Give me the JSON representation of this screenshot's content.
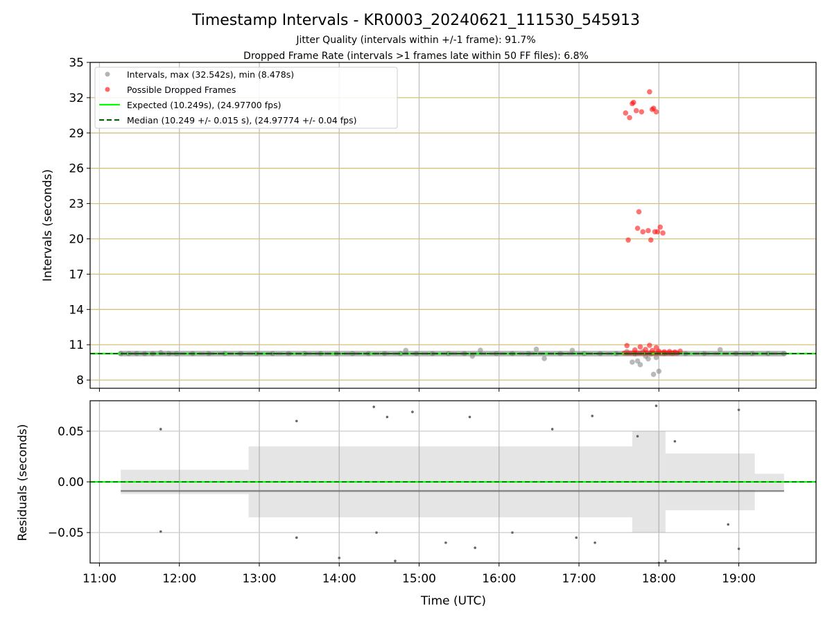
{
  "chart_data": [
    {
      "type": "scatter",
      "title": "Timestamp Intervals - KR0003_20240621_111530_545913",
      "subtitle_lines": [
        "Jitter Quality (intervals within +/-1 frame): 91.7%",
        "Dropped Frame Rate (intervals >1 frames late within 50 FF files): 6.8%"
      ],
      "xlabel": "",
      "ylabel": "Intervals (seconds)",
      "xlim": [
        "10:53",
        "19:58"
      ],
      "ylim": [
        7.3,
        35
      ],
      "yticks": [
        8,
        11,
        14,
        17,
        20,
        23,
        26,
        29,
        32,
        35
      ],
      "grid": true,
      "legend_position": "top-left",
      "legend": [
        "Intervals, max (32.542s), min (8.478s)",
        "Possible Dropped Frames",
        "Expected (10.249s), (24.97700 fps)",
        "Median (10.249 +/- 0.015 s), (24.97774 +/- 0.04 fps)"
      ],
      "expected_interval": 10.249,
      "median_interval": 10.249,
      "series": [
        {
          "name": "Intervals, max (32.542s), min (8.478s)",
          "color": "#808080",
          "x": [
            "11:16",
            "11:22",
            "11:28",
            "11:34",
            "11:40",
            "11:46",
            "11:52",
            "11:58",
            "12:10",
            "12:22",
            "12:34",
            "12:46",
            "12:58",
            "13:10",
            "13:22",
            "13:34",
            "13:46",
            "13:58",
            "14:10",
            "14:22",
            "14:34",
            "14:46",
            "14:50",
            "14:58",
            "15:10",
            "15:22",
            "15:34",
            "15:40",
            "15:46",
            "15:58",
            "16:10",
            "16:22",
            "16:28",
            "16:34",
            "16:46",
            "16:55",
            "17:04",
            "17:16",
            "17:28",
            "17:36",
            "17:40",
            "17:42",
            "17:44",
            "17:46",
            "17:48",
            "17:50",
            "17:52",
            "17:54",
            "17:56",
            "17:58",
            "18:00",
            "18:04",
            "18:10",
            "18:20",
            "18:34",
            "18:46",
            "18:58",
            "19:10",
            "19:22",
            "19:34"
          ],
          "y": [
            10.25,
            10.25,
            10.26,
            10.24,
            10.25,
            10.33,
            10.25,
            10.24,
            10.25,
            10.25,
            10.25,
            10.26,
            10.25,
            10.25,
            10.25,
            10.26,
            10.25,
            10.25,
            10.25,
            10.25,
            10.26,
            10.25,
            10.52,
            10.25,
            10.25,
            10.25,
            10.25,
            10.03,
            10.53,
            10.25,
            10.25,
            10.25,
            10.62,
            9.83,
            10.25,
            10.52,
            10.25,
            10.25,
            10.25,
            10.42,
            9.52,
            10.21,
            9.62,
            9.31,
            10.42,
            10.03,
            9.8,
            10.21,
            8.48,
            9.92,
            8.75,
            10.25,
            10.25,
            10.25,
            10.25,
            10.58,
            10.25,
            10.25,
            10.25,
            10.25
          ]
        },
        {
          "name": "Possible Dropped Frames",
          "color": "#ff0000",
          "x": [
            "17:35",
            "17:38",
            "17:40",
            "17:41",
            "17:43",
            "17:47",
            "17:53",
            "17:55",
            "17:56",
            "17:58",
            "17:37",
            "17:44",
            "17:45",
            "17:48",
            "17:52",
            "17:54",
            "17:57",
            "17:59",
            "18:01",
            "18:03",
            "17:36",
            "17:42",
            "17:46",
            "17:50",
            "17:53",
            "17:55",
            "17:58",
            "18:00",
            "18:04",
            "18:08",
            "18:12",
            "18:16"
          ],
          "y": [
            30.7,
            30.3,
            31.5,
            31.6,
            30.9,
            30.8,
            32.5,
            31.0,
            31.1,
            30.8,
            19.9,
            20.9,
            22.3,
            20.6,
            20.7,
            19.9,
            20.6,
            20.6,
            21.0,
            20.5,
            10.93,
            10.55,
            10.82,
            10.6,
            10.95,
            10.5,
            10.75,
            10.45,
            10.4,
            10.42,
            10.38,
            10.45
          ]
        },
        {
          "name": "Expected (10.249s), (24.97700 fps)",
          "color": "#00ff00",
          "x": [
            "10:53",
            "19:58"
          ],
          "y": [
            10.249,
            10.249
          ]
        },
        {
          "name": "Median (10.249 +/- 0.015 s), (24.97774 +/- 0.04 fps)",
          "color": "#006400",
          "x": [
            "11:16",
            "19:34"
          ],
          "y": [
            10.249,
            10.249
          ]
        }
      ]
    },
    {
      "type": "scatter",
      "title": "",
      "xlabel": "Time (UTC)",
      "ylabel": "Residuals (seconds)",
      "xlim": [
        "10:53",
        "19:58"
      ],
      "ylim": [
        -0.08,
        0.08
      ],
      "yticks": [
        0.05,
        0.0,
        -0.05
      ],
      "ytick_labels": [
        "0.05",
        "0.00",
        "−0.05"
      ],
      "xticks": [
        "11:00",
        "12:00",
        "13:00",
        "14:00",
        "15:00",
        "16:00",
        "17:00",
        "18:00",
        "19:00"
      ],
      "grid": true,
      "series": [
        {
          "name": "",
          "color": "#666666",
          "x": [
            "11:46",
            "13:28",
            "14:26",
            "14:36",
            "14:55",
            "15:38",
            "16:40",
            "17:10",
            "17:44",
            "17:58",
            "18:12",
            "19:00",
            "11:46",
            "13:28",
            "14:00",
            "14:28",
            "14:42",
            "15:20",
            "15:42",
            "16:10",
            "16:58",
            "17:12",
            "18:00",
            "18:05",
            "18:52",
            "19:00"
          ],
          "y": [
            0.052,
            0.06,
            0.074,
            0.064,
            0.069,
            0.064,
            0.052,
            0.065,
            0.045,
            0.075,
            0.04,
            0.071,
            -0.049,
            -0.055,
            -0.075,
            -0.05,
            -0.078,
            -0.06,
            -0.065,
            -0.05,
            -0.055,
            -0.06,
            -0.08,
            -0.078,
            -0.042,
            -0.066
          ]
        },
        {
          "name": "",
          "color": "#00ff00",
          "x": [
            "10:53",
            "19:58"
          ],
          "y": [
            0,
            0
          ]
        }
      ]
    }
  ]
}
